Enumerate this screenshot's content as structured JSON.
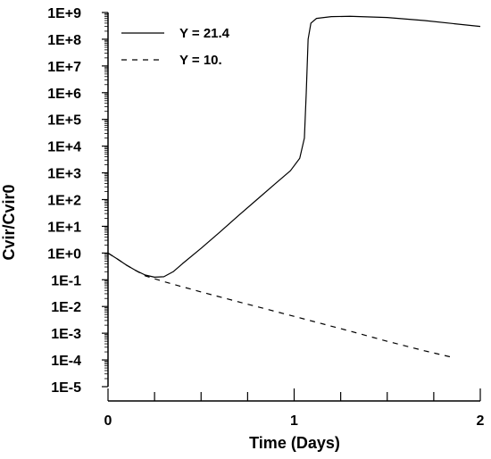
{
  "chart_data": {
    "type": "line",
    "xlabel": "Time (Days)",
    "ylabel": "Cvir/Cvir0",
    "xlim": [
      0,
      2
    ],
    "ylim_log10": [
      -5,
      9
    ],
    "y_scale": "log",
    "x_ticks": [
      {
        "value": 0,
        "label": "0"
      },
      {
        "value": 1,
        "label": "1"
      },
      {
        "value": 2,
        "label": "2"
      }
    ],
    "y_ticks": [
      {
        "exp": 9,
        "label": "1E+9"
      },
      {
        "exp": 8,
        "label": "1E+8"
      },
      {
        "exp": 7,
        "label": "1E+7"
      },
      {
        "exp": 6,
        "label": "1E+6"
      },
      {
        "exp": 5,
        "label": "1E+5"
      },
      {
        "exp": 4,
        "label": "1E+4"
      },
      {
        "exp": 3,
        "label": "1E+3"
      },
      {
        "exp": 2,
        "label": "1E+2"
      },
      {
        "exp": 1,
        "label": "1E+1"
      },
      {
        "exp": 0,
        "label": "1E+0"
      },
      {
        "exp": -1,
        "label": "1E-1"
      },
      {
        "exp": -2,
        "label": "1E-2"
      },
      {
        "exp": -3,
        "label": "1E-3"
      },
      {
        "exp": -4,
        "label": "1E-4"
      },
      {
        "exp": -5,
        "label": "1E-5"
      }
    ],
    "legend_position": "top-left",
    "series": [
      {
        "name": "Y = 21.4",
        "style": "solid",
        "color": "#000000",
        "points": [
          [
            0.0,
            1.0
          ],
          [
            0.05,
            0.6
          ],
          [
            0.1,
            0.35
          ],
          [
            0.15,
            0.22
          ],
          [
            0.2,
            0.15
          ],
          [
            0.25,
            0.125
          ],
          [
            0.3,
            0.13
          ],
          [
            0.35,
            0.2
          ],
          [
            0.4,
            0.4
          ],
          [
            0.5,
            1.5
          ],
          [
            0.6,
            6
          ],
          [
            0.7,
            25
          ],
          [
            0.8,
            100
          ],
          [
            0.9,
            400
          ],
          [
            0.98,
            1200
          ],
          [
            1.03,
            3500
          ],
          [
            1.055,
            20000
          ],
          [
            1.065,
            1000000
          ],
          [
            1.075,
            100000000
          ],
          [
            1.09,
            400000000
          ],
          [
            1.12,
            600000000
          ],
          [
            1.2,
            700000000
          ],
          [
            1.3,
            720000000
          ],
          [
            1.5,
            650000000
          ],
          [
            1.7,
            500000000
          ],
          [
            2.0,
            300000000
          ]
        ]
      },
      {
        "name": "Y = 10.",
        "style": "dashed",
        "color": "#000000",
        "points": [
          [
            0.0,
            1.0
          ],
          [
            0.05,
            0.6
          ],
          [
            0.1,
            0.35
          ],
          [
            0.15,
            0.22
          ],
          [
            0.2,
            0.14
          ],
          [
            0.3,
            0.085
          ],
          [
            0.5,
            0.035
          ],
          [
            0.7,
            0.015
          ],
          [
            0.9,
            0.0065
          ],
          [
            1.1,
            0.0028
          ],
          [
            1.3,
            0.0012
          ],
          [
            1.5,
            0.0005
          ],
          [
            1.7,
            0.00022
          ],
          [
            1.84,
            0.00013
          ]
        ]
      }
    ]
  }
}
